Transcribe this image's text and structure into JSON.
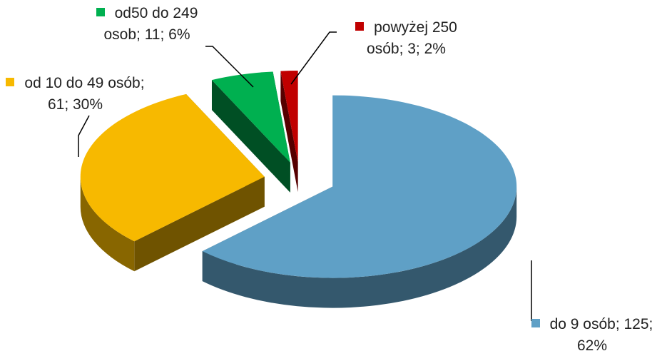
{
  "chart_data": {
    "type": "pie",
    "three_d": true,
    "values": [
      125,
      61,
      11,
      3
    ],
    "value_labels": [
      "do 9 osób; 125; 62%",
      "od 10 do 49 osób; 61; 30%",
      "od50 do 249 osob; 11; 6%",
      "powyżej 250 osób; 3; 2%"
    ],
    "colors": [
      "#5fa0c6",
      "#f7b900",
      "#00b050",
      "#c00000"
    ]
  }
}
